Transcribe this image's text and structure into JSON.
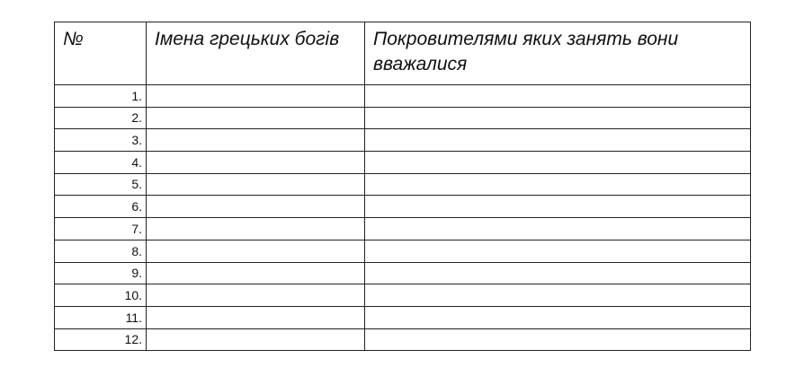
{
  "table": {
    "headers": [
      "№",
      "Імена грецьких богів",
      "Покровителями яких занять вони вважалися"
    ],
    "rows": [
      {
        "num": "1.",
        "god": "",
        "patron": ""
      },
      {
        "num": "2.",
        "god": "",
        "patron": ""
      },
      {
        "num": "3.",
        "god": "",
        "patron": ""
      },
      {
        "num": "4.",
        "god": "",
        "patron": ""
      },
      {
        "num": "5.",
        "god": "",
        "patron": ""
      },
      {
        "num": "6.",
        "god": "",
        "patron": ""
      },
      {
        "num": "7.",
        "god": "",
        "patron": ""
      },
      {
        "num": "8.",
        "god": "",
        "patron": ""
      },
      {
        "num": "9.",
        "god": "",
        "patron": ""
      },
      {
        "num": "10.",
        "god": "",
        "patron": ""
      },
      {
        "num": "11.",
        "god": "",
        "patron": ""
      },
      {
        "num": "12.",
        "god": "",
        "patron": ""
      }
    ]
  }
}
